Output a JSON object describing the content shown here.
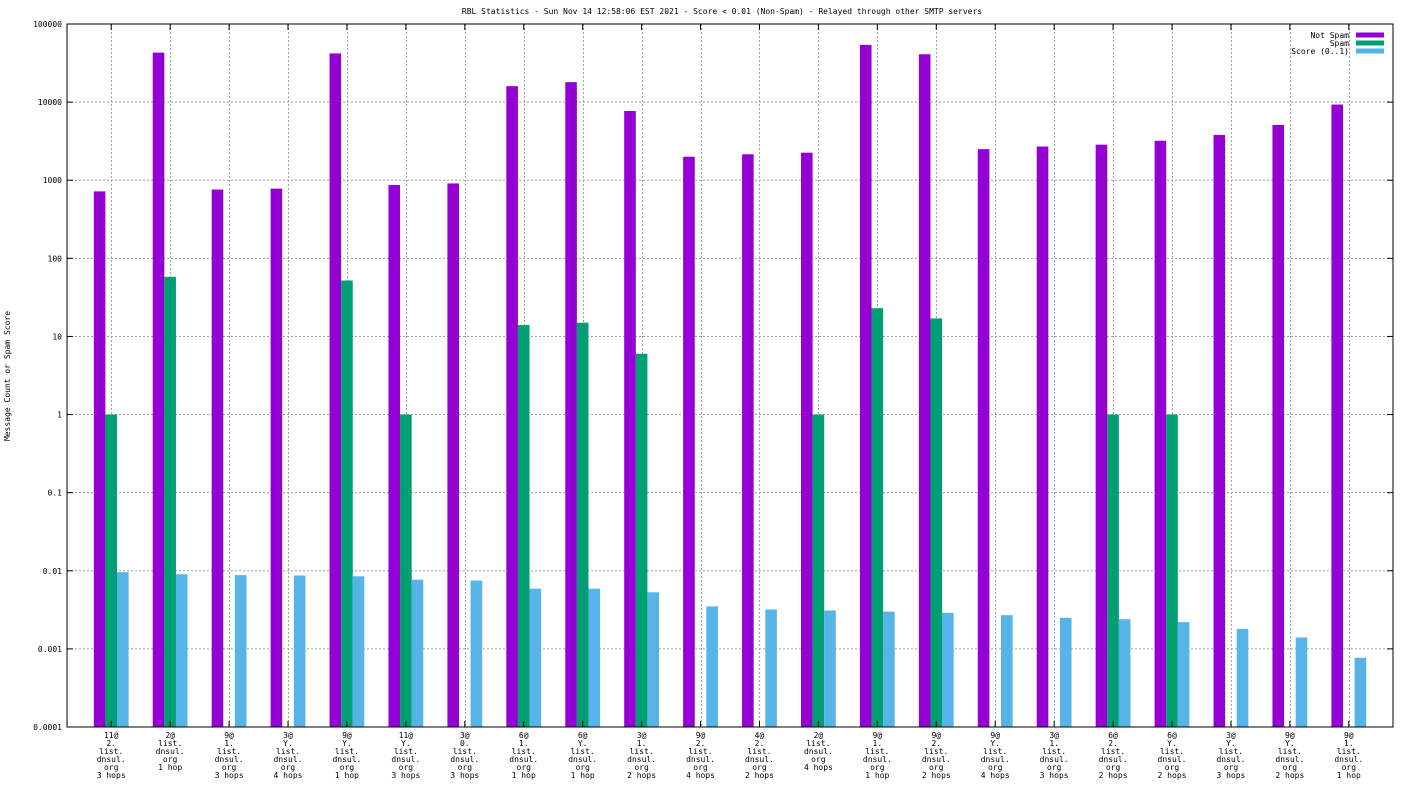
{
  "chart_data": {
    "type": "bar",
    "title": "RBL Statistics - Sun Nov 14 12:58:06 EST 2021 - Score < 0.01 (Non-Spam) - Relayed through other SMTP servers",
    "ylabel": "Message Count or Spam Score",
    "xlabel": "",
    "yscale": "log",
    "ylim": [
      0.0001,
      100000
    ],
    "yticks": [
      "0.0001",
      "0.001",
      "0.01",
      "0.1",
      "1",
      "10",
      "100",
      "1000",
      "10000",
      "100000"
    ],
    "grid": true,
    "legend_position": "top-right",
    "categories": [
      [
        "11@",
        "2.",
        "list.",
        "dnsul.",
        "org",
        "3 hops"
      ],
      [
        "2@",
        "list.",
        "dnsul.",
        "org",
        "1 hop"
      ],
      [
        "9@",
        "1.",
        "list.",
        "dnsul.",
        "org",
        "3 hops"
      ],
      [
        "3@",
        "Y.",
        "list.",
        "dnsul.",
        "org",
        "4 hops"
      ],
      [
        "9@",
        "Y.",
        "list.",
        "dnsul.",
        "org",
        "1 hop"
      ],
      [
        "11@",
        "Y.",
        "list.",
        "dnsul.",
        "org",
        "3 hops"
      ],
      [
        "3@",
        "0.",
        "list.",
        "dnsul.",
        "org",
        "3 hops"
      ],
      [
        "6@",
        "1.",
        "list.",
        "dnsul.",
        "org",
        "1 hop"
      ],
      [
        "6@",
        "Y.",
        "list.",
        "dnsul.",
        "org",
        "1 hop"
      ],
      [
        "3@",
        "1.",
        "list.",
        "dnsul.",
        "org",
        "2 hops"
      ],
      [
        "9@",
        "2.",
        "list.",
        "dnsul.",
        "org",
        "4 hops"
      ],
      [
        "4@",
        "2.",
        "list.",
        "dnsul.",
        "org",
        "2 hops"
      ],
      [
        "2@",
        "list.",
        "dnsul.",
        "org",
        "4 hops"
      ],
      [
        "9@",
        "1.",
        "list.",
        "dnsul.",
        "org",
        "1 hop"
      ],
      [
        "9@",
        "2.",
        "list.",
        "dnsul.",
        "org",
        "2 hops"
      ],
      [
        "9@",
        "Y.",
        "list.",
        "dnsul.",
        "org",
        "4 hops"
      ],
      [
        "3@",
        "1.",
        "list.",
        "dnsul.",
        "org",
        "3 hops"
      ],
      [
        "6@",
        "2.",
        "list.",
        "dnsul.",
        "org",
        "2 hops"
      ],
      [
        "6@",
        "Y.",
        "list.",
        "dnsul.",
        "org",
        "2 hops"
      ],
      [
        "3@",
        "Y.",
        "list.",
        "dnsul.",
        "org",
        "3 hops"
      ],
      [
        "9@",
        "Y.",
        "list.",
        "dnsul.",
        "org",
        "2 hops"
      ],
      [
        "9@",
        "1.",
        "list.",
        "dnsul.",
        "org",
        "1 hop"
      ]
    ],
    "series": [
      {
        "name": "Not Spam",
        "color": "#9400d3",
        "values": [
          720,
          43000,
          760,
          780,
          42000,
          870,
          910,
          16000,
          18000,
          7700,
          2000,
          2150,
          2250,
          54000,
          41000,
          2500,
          2700,
          2850,
          3200,
          3800,
          5100,
          9300
        ]
      },
      {
        "name": "Spam",
        "color": "#009e73",
        "values": [
          1,
          58,
          null,
          null,
          52,
          1,
          null,
          14,
          15,
          6,
          null,
          null,
          1,
          23,
          17,
          null,
          null,
          1,
          1,
          null,
          null,
          null
        ]
      },
      {
        "name": "Score (0..1)",
        "color": "#56b4e9",
        "values": [
          0.0096,
          0.009,
          0.0088,
          0.0087,
          0.0085,
          0.0077,
          0.0075,
          0.0059,
          0.0059,
          0.0053,
          0.0035,
          0.0032,
          0.0031,
          0.003,
          0.0029,
          0.0027,
          0.0025,
          0.0024,
          0.0022,
          0.0018,
          0.0014,
          0.00077
        ]
      }
    ]
  }
}
